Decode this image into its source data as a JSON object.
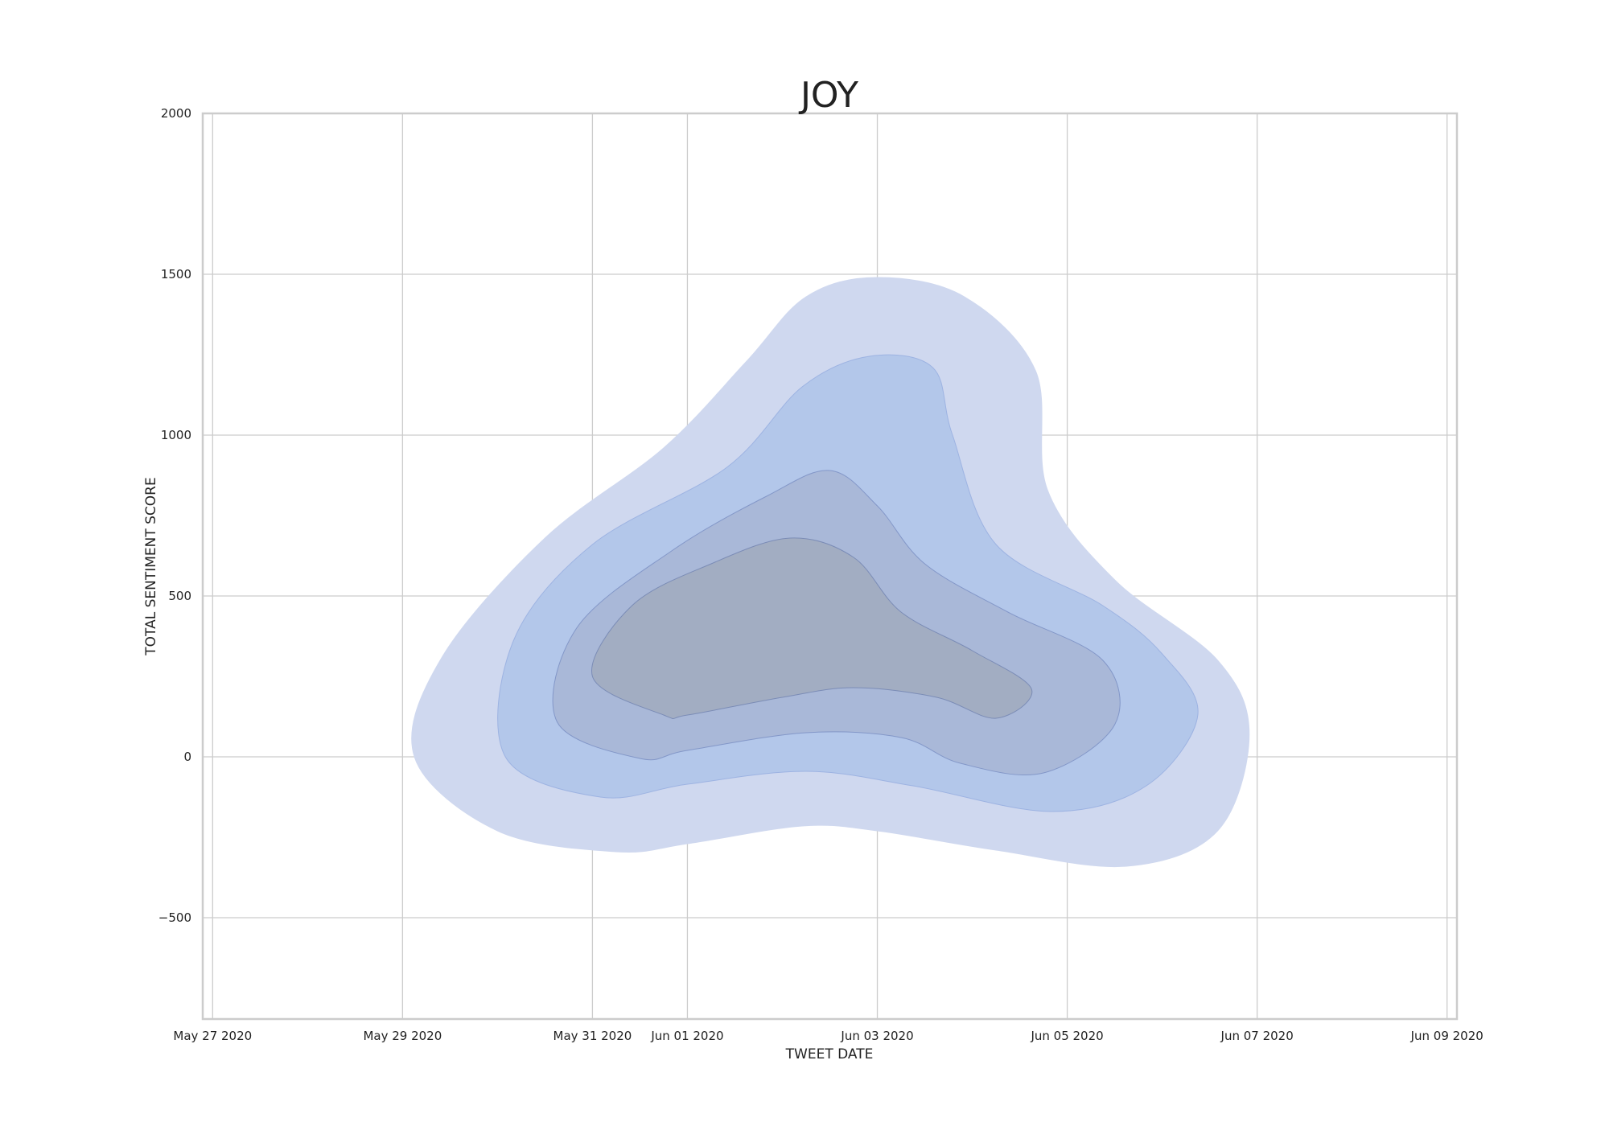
{
  "chart_data": {
    "type": "kde_contour",
    "title": "JOY",
    "xlabel": "TWEET DATE",
    "ylabel": "TOTAL SENTIMENT SCORE",
    "x_axis_type": "date",
    "xlim": [
      "May 26 2020 21:30",
      "Jun 09 2020 02:30"
    ],
    "ylim": [
      -815,
      2000
    ],
    "x_ticks": [
      {
        "label": "May 27 2020",
        "value": "2020-05-27"
      },
      {
        "label": "May 29 2020",
        "value": "2020-05-29"
      },
      {
        "label": "May 31 2020",
        "value": "2020-05-31"
      },
      {
        "label": "Jun 01 2020",
        "value": "2020-06-01"
      },
      {
        "label": "Jun 03 2020",
        "value": "2020-06-03"
      },
      {
        "label": "Jun 05 2020",
        "value": "2020-06-05"
      },
      {
        "label": "Jun 07 2020",
        "value": "2020-06-07"
      },
      {
        "label": "Jun 09 2020",
        "value": "2020-06-09"
      }
    ],
    "y_ticks": [
      {
        "label": "2000",
        "value": 2000
      },
      {
        "label": "1500",
        "value": 1500
      },
      {
        "label": "1000",
        "value": 1000
      },
      {
        "label": "500",
        "value": 500
      },
      {
        "label": "0",
        "value": 0
      },
      {
        "label": "−500",
        "value": -500
      }
    ],
    "grid": true,
    "color": "#4c72b0",
    "levels": [
      {
        "fill": "#cfd8ef",
        "edge": "#cfd8ef",
        "points": [
          [
            "2020-06-03 00:00",
            1490
          ],
          [
            "2020-06-03 22:00",
            1430
          ],
          [
            "2020-06-04 16:00",
            1200
          ],
          [
            "2020-06-04 19:00",
            830
          ],
          [
            "2020-06-05 12:00",
            550
          ],
          [
            "2020-06-06 14:00",
            300
          ],
          [
            "2020-06-06 22:00",
            70
          ],
          [
            "2020-06-06 14:00",
            -230
          ],
          [
            "2020-06-05 15:00",
            -340
          ],
          [
            "2020-06-04 06:00",
            -290
          ],
          [
            "2020-06-03 00:00",
            -230
          ],
          [
            "2020-06-02 05:00",
            -215
          ],
          [
            "2020-06-01 00:00",
            -270
          ],
          [
            "2020-05-31 06:00",
            -295
          ],
          [
            "2020-05-30 00:00",
            -230
          ],
          [
            "2020-05-29 03:00",
            0
          ],
          [
            "2020-05-29 10:00",
            310
          ],
          [
            "2020-05-30 12:00",
            680
          ],
          [
            "2020-05-31 18:00",
            960
          ],
          [
            "2020-06-01 15:00",
            1230
          ],
          [
            "2020-06-02 06:00",
            1430
          ]
        ]
      },
      {
        "fill": "#b3c7ea",
        "edge": "#9db3e2",
        "points": [
          [
            "2020-06-02 22:00",
            1245
          ],
          [
            "2020-06-03 14:00",
            1210
          ],
          [
            "2020-06-03 19:00",
            1000
          ],
          [
            "2020-06-04 06:00",
            660
          ],
          [
            "2020-06-05 09:00",
            470
          ],
          [
            "2020-06-06 00:00",
            320
          ],
          [
            "2020-06-06 09:00",
            130
          ],
          [
            "2020-06-05 20:00",
            -90
          ],
          [
            "2020-06-04 20:00",
            -170
          ],
          [
            "2020-06-03 09:00",
            -90
          ],
          [
            "2020-06-02 06:00",
            -45
          ],
          [
            "2020-06-01 00:00",
            -85
          ],
          [
            "2020-05-31 02:00",
            -125
          ],
          [
            "2020-05-30 02:00",
            0
          ],
          [
            "2020-05-30 04:00",
            360
          ],
          [
            "2020-05-31 00:00",
            660
          ],
          [
            "2020-06-01 10:00",
            900
          ],
          [
            "2020-06-02 05:00",
            1150
          ]
        ]
      },
      {
        "fill": "#a9b8d8",
        "edge": "#8397c8",
        "points": [
          [
            "2020-06-02 12:00",
            890
          ],
          [
            "2020-06-03 00:00",
            780
          ],
          [
            "2020-06-03 12:00",
            600
          ],
          [
            "2020-06-04 09:00",
            450
          ],
          [
            "2020-06-05 09:00",
            300
          ],
          [
            "2020-06-05 12:00",
            100
          ],
          [
            "2020-06-04 18:00",
            -50
          ],
          [
            "2020-06-03 21:00",
            -20
          ],
          [
            "2020-06-03 06:00",
            60
          ],
          [
            "2020-06-02 06:00",
            75
          ],
          [
            "2020-06-01 00:00",
            20
          ],
          [
            "2020-05-31 12:00",
            -5
          ],
          [
            "2020-05-30 15:00",
            110
          ],
          [
            "2020-05-30 20:00",
            400
          ],
          [
            "2020-05-31 20:00",
            640
          ],
          [
            "2020-06-01 20:00",
            810
          ]
        ]
      },
      {
        "fill": "#a2adc2",
        "edge": "#7b8cb6",
        "points": [
          [
            "2020-06-02 02:00",
            680
          ],
          [
            "2020-06-02 18:00",
            620
          ],
          [
            "2020-06-03 06:00",
            450
          ],
          [
            "2020-06-04 00:00",
            330
          ],
          [
            "2020-06-04 15:00",
            210
          ],
          [
            "2020-06-04 06:00",
            120
          ],
          [
            "2020-06-03 15:00",
            185
          ],
          [
            "2020-06-02 18:00",
            215
          ],
          [
            "2020-06-02 00:00",
            185
          ],
          [
            "2020-06-01 00:00",
            130
          ],
          [
            "2020-05-31 18:00",
            130
          ],
          [
            "2020-05-31 00:00",
            250
          ],
          [
            "2020-05-31 10:00",
            470
          ],
          [
            "2020-06-01 06:00",
            600
          ]
        ]
      }
    ]
  }
}
